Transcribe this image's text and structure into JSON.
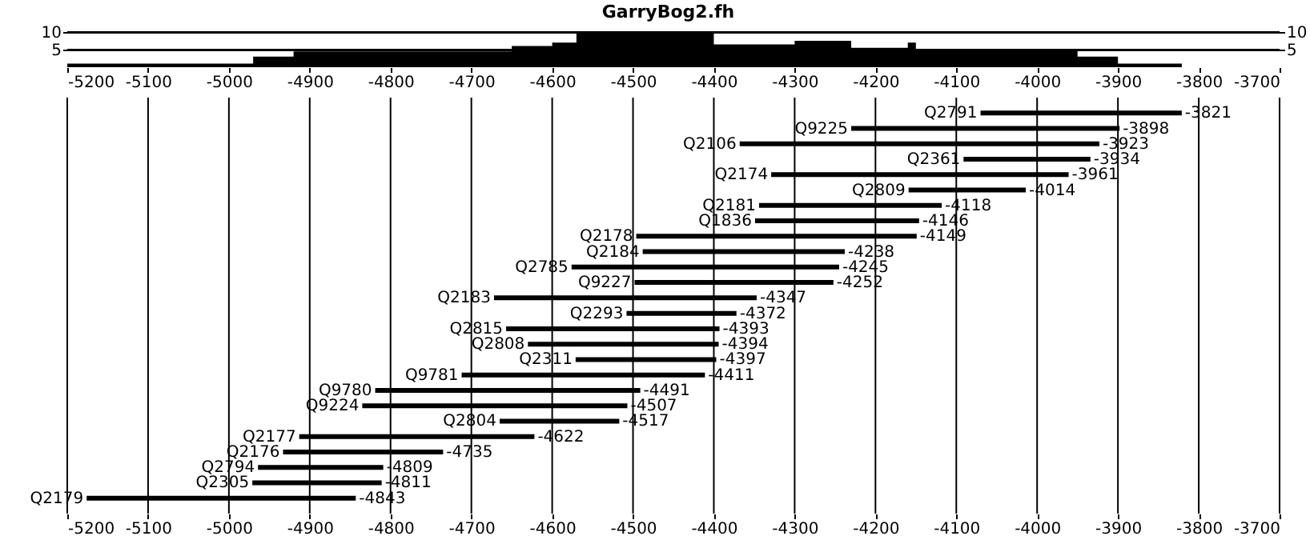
{
  "chart_data": [
    {
      "type": "area",
      "title": "GarryBog2.fh",
      "x": [
        -5200,
        -4970,
        -4920,
        -4650,
        -4600,
        -4570,
        -4400,
        -4300,
        -4230,
        -4160,
        -4150,
        -3950,
        -3900,
        -3821
      ],
      "series": [
        {
          "color": "#000000",
          "values": [
            1,
            3,
            4.5,
            6,
            7,
            10,
            6.5,
            7.5,
            5.5,
            7,
            5,
            3,
            1,
            1
          ]
        }
      ],
      "xlim": [
        -5200,
        -3700
      ],
      "xticks": [
        -5200,
        -5100,
        -5000,
        -4900,
        -4800,
        -4700,
        -4600,
        -4500,
        -4400,
        -4300,
        -4200,
        -4100,
        -4000,
        -3900,
        -3800,
        -3700
      ],
      "ylim": [
        0,
        10
      ],
      "yticks": [
        5,
        10
      ],
      "y2lim": [
        0,
        10
      ],
      "y2ticks": [
        5,
        10
      ],
      "grid": "y"
    },
    {
      "type": "bar",
      "orientation": "horizontal",
      "categories": [
        "Q2791",
        "Q9225",
        "Q2106",
        "Q2361",
        "Q2174",
        "Q2809",
        "Q2181",
        "Q1836",
        "Q2178",
        "Q2184",
        "Q2785",
        "Q9227",
        "Q2183",
        "Q2293",
        "Q2815",
        "Q2808",
        "Q2311",
        "Q9781",
        "Q9780",
        "Q9224",
        "Q2804",
        "Q2177",
        "Q2176",
        "Q2794",
        "Q2305",
        "Q2179"
      ],
      "base": [
        -4070,
        -4230,
        -4368,
        -4091,
        -4329,
        -4159,
        -4344,
        -4349,
        -4496,
        -4488,
        -4576,
        -4498,
        -4672,
        -4508,
        -4657,
        -4630,
        -4571,
        -4712,
        -4819,
        -4835,
        -4665,
        -4913,
        -4933,
        -4964,
        -4971,
        -5176
      ],
      "values": [
        249,
        332,
        445,
        157,
        368,
        145,
        226,
        203,
        347,
        250,
        331,
        246,
        325,
        136,
        264,
        236,
        174,
        301,
        328,
        328,
        148,
        291,
        198,
        155,
        160,
        333
      ],
      "value_labels": [
        "-3821",
        "-3898",
        "-3923",
        "-3934",
        "-3961",
        "-4014",
        "-4118",
        "-4146",
        "-4149",
        "-4238",
        "-4245",
        "-4252",
        "-4347",
        "-4372",
        "-4393",
        "-4394",
        "-4397",
        "-4411",
        "-4491",
        "-4507",
        "-4517",
        "-4622",
        "-4735",
        "-4809",
        "-4811",
        "-4843"
      ],
      "color": "#000000",
      "xlim": [
        -5200,
        -3700
      ],
      "xticks": [
        -5200,
        -5100,
        -5000,
        -4900,
        -4800,
        -4700,
        -4600,
        -4500,
        -4400,
        -4300,
        -4200,
        -4100,
        -4000,
        -3900,
        -3800,
        -3700
      ],
      "grid": "x",
      "tick_labels": "x"
    }
  ]
}
